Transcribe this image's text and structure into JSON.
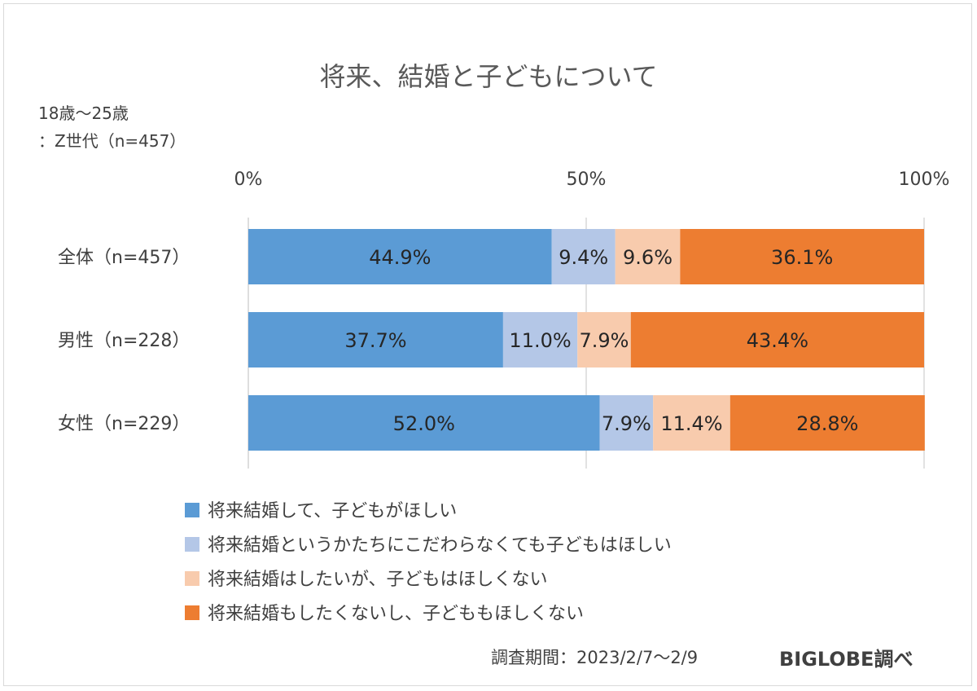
{
  "chart_data": {
    "type": "bar",
    "orientation": "horizontal",
    "stacked": true,
    "title": "将来、結婚と子どもについて",
    "subtitle_lines": [
      "18歳〜25歳",
      "：Z世代（n=457）"
    ],
    "categories": [
      "全体（n=457）",
      "男性（n=228）",
      "女性（n=229）"
    ],
    "x_ticks": [
      "0%",
      "50%",
      "100%"
    ],
    "xlim": [
      0,
      100
    ],
    "grid": true,
    "legend_position": "bottom",
    "series": [
      {
        "name": "将来結婚して、子どもがほしい",
        "color": "#5b9bd5",
        "values": [
          44.9,
          37.7,
          52.0
        ],
        "labels": [
          "44.9%",
          "37.7%",
          "52.0%"
        ]
      },
      {
        "name": "将来結婚というかたちにこだわらなくても子どもはほしい",
        "color": "#b4c7e7",
        "values": [
          9.4,
          11.0,
          7.9
        ],
        "labels": [
          "9.4%",
          "11.0%",
          "7.9%"
        ]
      },
      {
        "name": "将来結婚はしたいが、子どもはほしくない",
        "color": "#f8cbad",
        "values": [
          9.6,
          7.9,
          11.4
        ],
        "labels": [
          "9.6%",
          "7.9%",
          "11.4%"
        ]
      },
      {
        "name": "将来結婚もしたくないし、子どももほしくない",
        "color": "#ed7d31",
        "values": [
          36.1,
          43.4,
          28.8
        ],
        "labels": [
          "36.1%",
          "43.4%",
          "28.8%"
        ]
      }
    ]
  },
  "footer": {
    "period": "調査期間：2023/2/7〜2/9",
    "source": "BIGLOBE調べ"
  }
}
